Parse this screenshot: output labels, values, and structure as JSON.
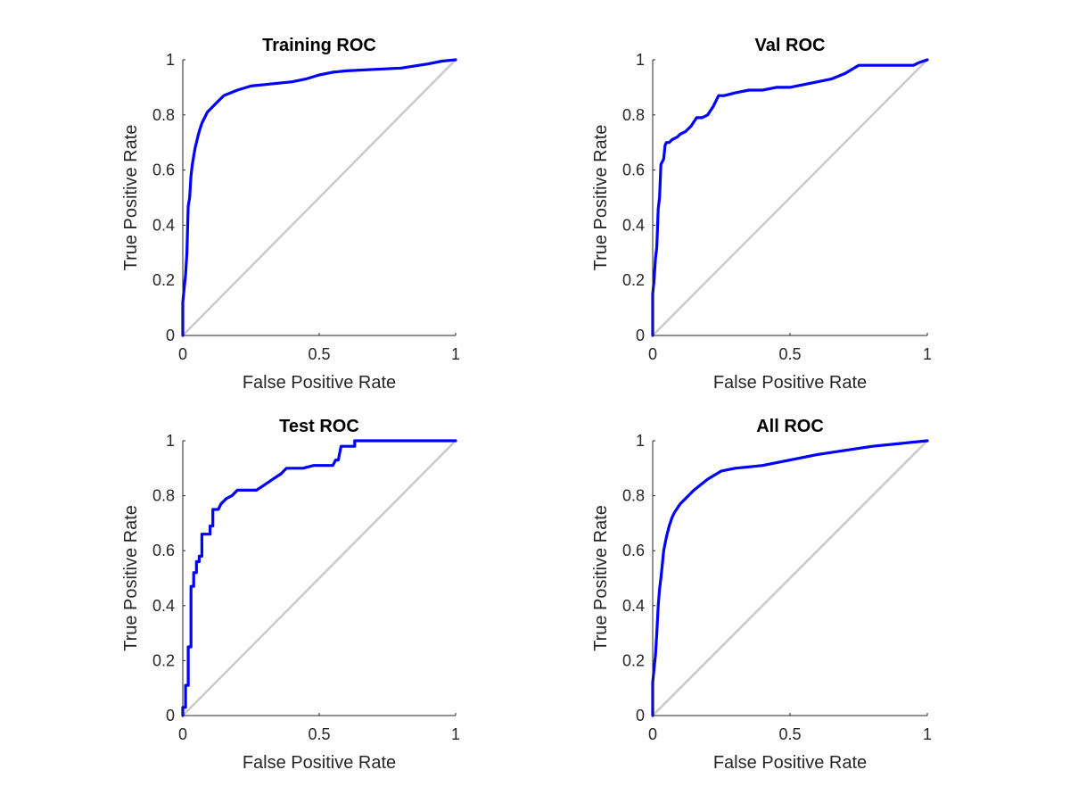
{
  "figure": {
    "background": "#ffffff"
  },
  "chart_data": [
    {
      "type": "line",
      "title": "Training ROC",
      "xlabel": "False Positive Rate",
      "ylabel": "True Positive Rate",
      "xlim": [
        0,
        1
      ],
      "ylim": [
        0,
        1
      ],
      "xticks": [
        0,
        0.5,
        1
      ],
      "xtick_labels": [
        "0",
        "0.5",
        "1"
      ],
      "yticks": [
        0,
        0.2,
        0.4,
        0.6,
        0.8,
        1
      ],
      "ytick_labels": [
        "0",
        "0.2",
        "0.4",
        "0.6",
        "0.8",
        "1"
      ],
      "grid": false,
      "series": [
        {
          "color": "#0000ff",
          "x": [
            0,
            0,
            0.005,
            0.01,
            0.015,
            0.02,
            0.025,
            0.03,
            0.035,
            0.04,
            0.045,
            0.05,
            0.055,
            0.06,
            0.07,
            0.08,
            0.09,
            0.1,
            0.12,
            0.15,
            0.2,
            0.25,
            0.3,
            0.4,
            0.45,
            0.5,
            0.55,
            0.6,
            0.7,
            0.8,
            0.9,
            0.95,
            1
          ],
          "y": [
            0,
            0.12,
            0.17,
            0.22,
            0.3,
            0.47,
            0.5,
            0.58,
            0.62,
            0.65,
            0.68,
            0.7,
            0.72,
            0.74,
            0.77,
            0.79,
            0.81,
            0.82,
            0.84,
            0.87,
            0.89,
            0.905,
            0.91,
            0.92,
            0.93,
            0.945,
            0.955,
            0.96,
            0.965,
            0.97,
            0.985,
            0.995,
            1
          ]
        },
        {
          "color": "#cccccc",
          "x": [
            0,
            1
          ],
          "y": [
            0,
            1
          ]
        }
      ]
    },
    {
      "type": "line",
      "title": "Val ROC",
      "xlabel": "False Positive Rate",
      "ylabel": "True Positive Rate",
      "xlim": [
        0,
        1
      ],
      "ylim": [
        0,
        1
      ],
      "xticks": [
        0,
        0.5,
        1
      ],
      "xtick_labels": [
        "0",
        "0.5",
        "1"
      ],
      "yticks": [
        0,
        0.2,
        0.4,
        0.6,
        0.8,
        1
      ],
      "ytick_labels": [
        "0",
        "0.2",
        "0.4",
        "0.6",
        "0.8",
        "1"
      ],
      "grid": false,
      "series": [
        {
          "color": "#0000ff",
          "x": [
            0,
            0,
            0.005,
            0.01,
            0.015,
            0.02,
            0.025,
            0.03,
            0.04,
            0.045,
            0.05,
            0.06,
            0.07,
            0.09,
            0.1,
            0.12,
            0.14,
            0.16,
            0.18,
            0.2,
            0.22,
            0.24,
            0.26,
            0.3,
            0.35,
            0.4,
            0.45,
            0.5,
            0.55,
            0.6,
            0.65,
            0.7,
            0.75,
            0.8,
            0.9,
            0.95,
            0.97,
            1
          ],
          "y": [
            0,
            0.15,
            0.2,
            0.28,
            0.32,
            0.46,
            0.5,
            0.62,
            0.64,
            0.69,
            0.7,
            0.7,
            0.71,
            0.72,
            0.73,
            0.74,
            0.76,
            0.79,
            0.79,
            0.8,
            0.83,
            0.87,
            0.87,
            0.88,
            0.89,
            0.89,
            0.9,
            0.9,
            0.91,
            0.92,
            0.93,
            0.95,
            0.98,
            0.98,
            0.98,
            0.98,
            0.99,
            1
          ]
        },
        {
          "color": "#cccccc",
          "x": [
            0,
            1
          ],
          "y": [
            0,
            1
          ]
        }
      ]
    },
    {
      "type": "line",
      "title": "Test ROC",
      "xlabel": "False Positive Rate",
      "ylabel": "True Positive Rate",
      "xlim": [
        0,
        1
      ],
      "ylim": [
        0,
        1
      ],
      "xticks": [
        0,
        0.5,
        1
      ],
      "xtick_labels": [
        "0",
        "0.5",
        "1"
      ],
      "yticks": [
        0,
        0.2,
        0.4,
        0.6,
        0.8,
        1
      ],
      "ytick_labels": [
        "0",
        "0.2",
        "0.4",
        "0.6",
        "0.8",
        "1"
      ],
      "grid": false,
      "series": [
        {
          "color": "#0000ff",
          "x": [
            0,
            0,
            0.01,
            0.01,
            0.02,
            0.02,
            0.03,
            0.03,
            0.04,
            0.04,
            0.05,
            0.05,
            0.06,
            0.06,
            0.07,
            0.07,
            0.08,
            0.08,
            0.1,
            0.1,
            0.11,
            0.11,
            0.13,
            0.14,
            0.16,
            0.18,
            0.2,
            0.27,
            0.3,
            0.33,
            0.36,
            0.38,
            0.4,
            0.44,
            0.48,
            0.52,
            0.53,
            0.55,
            0.56,
            0.57,
            0.58,
            0.63,
            0.63,
            1
          ],
          "y": [
            0,
            0.03,
            0.03,
            0.11,
            0.11,
            0.25,
            0.25,
            0.47,
            0.47,
            0.52,
            0.52,
            0.56,
            0.56,
            0.58,
            0.58,
            0.66,
            0.66,
            0.66,
            0.66,
            0.69,
            0.69,
            0.75,
            0.75,
            0.77,
            0.79,
            0.8,
            0.82,
            0.82,
            0.84,
            0.86,
            0.88,
            0.9,
            0.9,
            0.9,
            0.91,
            0.91,
            0.91,
            0.91,
            0.93,
            0.93,
            0.98,
            0.98,
            1,
            1
          ]
        },
        {
          "color": "#cccccc",
          "x": [
            0,
            1
          ],
          "y": [
            0,
            1
          ]
        }
      ]
    },
    {
      "type": "line",
      "title": "All ROC",
      "xlabel": "False Positive Rate",
      "ylabel": "True Positive Rate",
      "xlim": [
        0,
        1
      ],
      "ylim": [
        0,
        1
      ],
      "xticks": [
        0,
        0.5,
        1
      ],
      "xtick_labels": [
        "0",
        "0.5",
        "1"
      ],
      "yticks": [
        0,
        0.2,
        0.4,
        0.6,
        0.8,
        1
      ],
      "ytick_labels": [
        "0",
        "0.2",
        "0.4",
        "0.6",
        "0.8",
        "1"
      ],
      "grid": false,
      "series": [
        {
          "color": "#0000ff",
          "x": [
            0,
            0,
            0.005,
            0.01,
            0.015,
            0.02,
            0.025,
            0.03,
            0.035,
            0.04,
            0.05,
            0.06,
            0.07,
            0.08,
            0.1,
            0.12,
            0.15,
            0.2,
            0.25,
            0.3,
            0.35,
            0.4,
            0.5,
            0.6,
            0.7,
            0.8,
            0.9,
            1
          ],
          "y": [
            0,
            0.12,
            0.17,
            0.22,
            0.3,
            0.4,
            0.46,
            0.5,
            0.55,
            0.6,
            0.65,
            0.69,
            0.72,
            0.74,
            0.77,
            0.79,
            0.82,
            0.86,
            0.89,
            0.9,
            0.905,
            0.91,
            0.93,
            0.95,
            0.965,
            0.98,
            0.99,
            1
          ]
        },
        {
          "color": "#cccccc",
          "x": [
            0,
            1
          ],
          "y": [
            0,
            1
          ]
        }
      ]
    }
  ]
}
